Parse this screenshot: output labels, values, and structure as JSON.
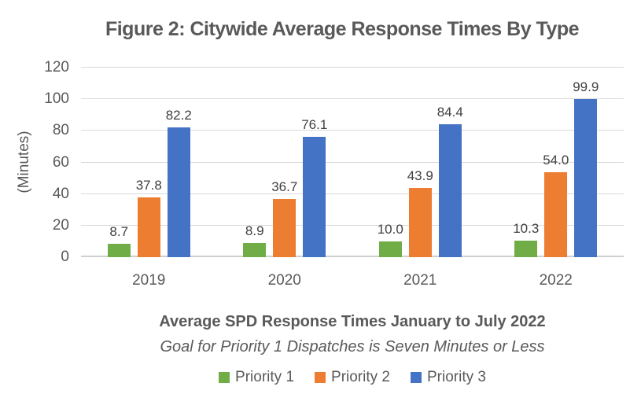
{
  "chart_data": {
    "type": "bar",
    "title": "Figure 2: Citywide Average Response Times By Type",
    "categories": [
      "2019",
      "2020",
      "2021",
      "2022"
    ],
    "series": [
      {
        "name": "Priority 1",
        "color": "#70AD47",
        "values": [
          8.7,
          8.9,
          10.0,
          10.3
        ],
        "labels": [
          "8.7",
          "8.9",
          "10.0",
          "10.3"
        ]
      },
      {
        "name": "Priority 2",
        "color": "#ED7D31",
        "values": [
          37.8,
          36.7,
          43.9,
          54.0
        ],
        "labels": [
          "37.8",
          "36.7",
          "43.9",
          "54.0"
        ]
      },
      {
        "name": "Priority 3",
        "color": "#4472C4",
        "values": [
          82.2,
          76.1,
          84.4,
          99.9
        ],
        "labels": [
          "82.2",
          "76.1",
          "84.4",
          "99.9"
        ]
      }
    ],
    "ylabel": "(Minutes)",
    "xlabel": "Average SPD Response Times January to July 2022",
    "note": "Goal for Priority 1 Dispatches is Seven Minutes or Less",
    "ylim": [
      0,
      120
    ],
    "yticks": [
      0,
      20,
      40,
      60,
      80,
      100,
      120
    ],
    "grid": true,
    "data_labels": true,
    "legend_position": "bottom"
  }
}
